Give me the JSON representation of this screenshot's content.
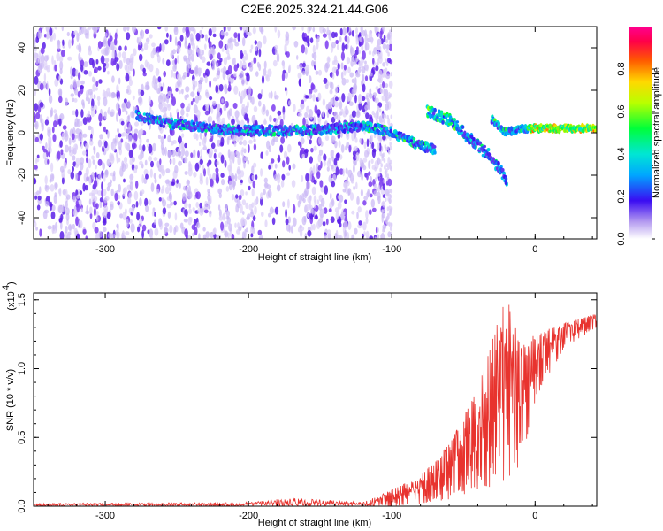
{
  "title": "C2E6.2025.324.21.44.G06",
  "chart_data": [
    {
      "type": "heatmap",
      "xlabel": "Height of straight line (km)",
      "ylabel": "Frequency (Hz)",
      "xlim": [
        -350,
        43
      ],
      "ylim": [
        -50,
        50
      ],
      "xticks": [
        -300,
        -200,
        -100,
        0
      ],
      "xtick_labels": [
        "-300",
        "-200",
        "-100",
        "0"
      ],
      "yticks": [
        -40,
        -20,
        0,
        20,
        40
      ],
      "ytick_labels": [
        "-40",
        "-20",
        "0",
        "20",
        "40"
      ],
      "colorbar": {
        "label": "Normalized spectral amplitude",
        "range": [
          0,
          1
        ],
        "ticks": [
          0.0,
          0.2,
          0.4,
          0.6,
          0.8
        ],
        "tick_labels": [
          "0.0",
          "0.2",
          "0.4",
          "0.6",
          "0.8"
        ]
      },
      "trace": [
        {
          "x": -278,
          "y": 8
        },
        {
          "x": -260,
          "y": 5
        },
        {
          "x": -240,
          "y": 3
        },
        {
          "x": -220,
          "y": 1.5
        },
        {
          "x": -200,
          "y": 1
        },
        {
          "x": -180,
          "y": 1
        },
        {
          "x": -160,
          "y": 1
        },
        {
          "x": -120,
          "y": 3
        },
        {
          "x": -110,
          "y": 2
        },
        {
          "x": -100,
          "y": 0
        },
        {
          "x": -90,
          "y": -3
        },
        {
          "x": -80,
          "y": -6
        },
        {
          "x": -70,
          "y": -8
        }
      ],
      "trace_upper": [
        {
          "x": -75,
          "y": 10
        },
        {
          "x": -60,
          "y": 6
        },
        {
          "x": -50,
          "y": 0
        },
        {
          "x": -40,
          "y": -6
        },
        {
          "x": -30,
          "y": -12
        },
        {
          "x": -20,
          "y": -22
        }
      ],
      "trace_tail": [
        {
          "x": -30,
          "y": 6
        },
        {
          "x": -20,
          "y": 0
        },
        {
          "x": -10,
          "y": 2
        },
        {
          "x": 0,
          "y": 2
        },
        {
          "x": 20,
          "y": 2
        },
        {
          "x": 43,
          "y": 2
        }
      ]
    },
    {
      "type": "line",
      "xlabel": "Height of straight line (km)",
      "ylabel": "SNR (10 * v/v)",
      "yscale_note": "(x10",
      "yscale_exp": "4",
      "xlim": [
        -350,
        43
      ],
      "ylim": [
        0,
        1.55
      ],
      "xticks": [
        -300,
        -200,
        -100,
        0
      ],
      "xtick_labels": [
        "-300",
        "-200",
        "-100",
        "0"
      ],
      "yticks": [
        0.0,
        0.5,
        1.0,
        1.5
      ],
      "ytick_labels": [
        "0.0",
        "0.5",
        "1.0",
        "1.5"
      ],
      "series": [
        {
          "name": "SNR",
          "color": "#e8332e",
          "envelope": [
            {
              "x": -350,
              "lo": 0.0,
              "hi": 0.02
            },
            {
              "x": -200,
              "lo": 0.0,
              "hi": 0.03
            },
            {
              "x": -170,
              "lo": 0.0,
              "hi": 0.06
            },
            {
              "x": -120,
              "lo": 0.0,
              "hi": 0.03
            },
            {
              "x": -100,
              "lo": 0.0,
              "hi": 0.12
            },
            {
              "x": -80,
              "lo": 0.02,
              "hi": 0.22
            },
            {
              "x": -60,
              "lo": 0.05,
              "hi": 0.45
            },
            {
              "x": -40,
              "lo": 0.1,
              "hi": 0.85
            },
            {
              "x": -20,
              "lo": 0.2,
              "hi": 1.55
            },
            {
              "x": -10,
              "lo": 0.3,
              "hi": 1.15
            },
            {
              "x": 0,
              "lo": 0.75,
              "hi": 1.25
            },
            {
              "x": 20,
              "lo": 1.15,
              "hi": 1.33
            },
            {
              "x": 43,
              "lo": 1.3,
              "hi": 1.4
            }
          ]
        }
      ]
    }
  ]
}
